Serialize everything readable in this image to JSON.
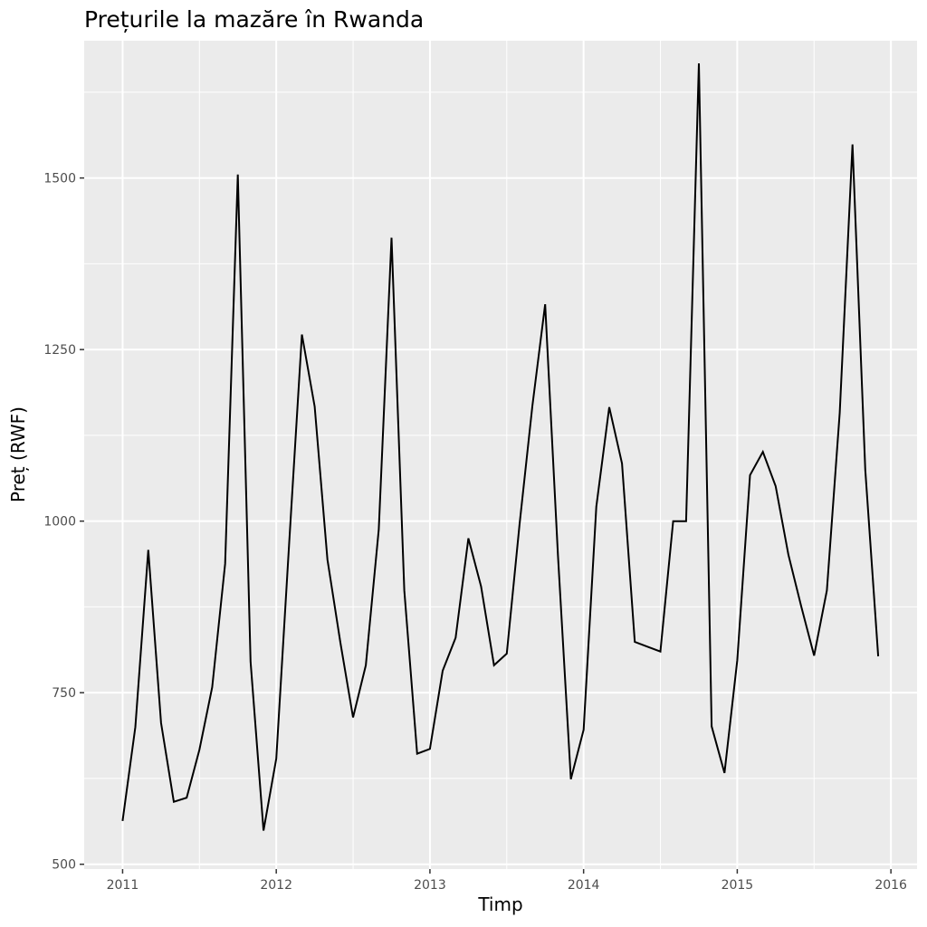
{
  "chart_data": {
    "type": "line",
    "title": "Prețurile la mazăre în Rwanda",
    "xlabel": "Timp",
    "ylabel": "Preț (RWF)",
    "xlim": [
      2010.75,
      2016.17
    ],
    "ylim": [
      493,
      1700
    ],
    "x_ticks": [
      2011,
      2012,
      2013,
      2014,
      2015,
      2016
    ],
    "y_ticks": [
      500,
      750,
      1000,
      1250,
      1500
    ],
    "grid": true,
    "panel_background": "#ebebeb",
    "grid_color": "#ffffff",
    "line_color": "#000000",
    "series": [
      {
        "x": [
          2011.0,
          2011.083,
          2011.167,
          2011.25,
          2011.333,
          2011.417,
          2011.5,
          2011.583,
          2011.667,
          2011.75,
          2011.833,
          2011.917,
          2012.0,
          2012.083,
          2012.167,
          2012.25,
          2012.333,
          2012.417,
          2012.5,
          2012.583,
          2012.667,
          2012.75,
          2012.833,
          2012.917,
          2013.0,
          2013.083,
          2013.167,
          2013.25,
          2013.333,
          2013.417,
          2013.5,
          2013.583,
          2013.667,
          2013.75,
          2013.833,
          2013.917,
          2014.0,
          2014.083,
          2014.167,
          2014.25,
          2014.333,
          2014.417,
          2014.5,
          2014.583,
          2014.667,
          2014.75,
          2014.833,
          2014.917,
          2015.0,
          2015.083,
          2015.167,
          2015.25,
          2015.333,
          2015.417,
          2015.5,
          2015.583,
          2015.667,
          2015.75,
          2015.833,
          2015.917
        ],
        "values": [
          563,
          700,
          958,
          706,
          591,
          597,
          667,
          758,
          938,
          1505,
          795,
          549,
          654,
          965,
          1272,
          1167,
          944,
          823,
          714,
          790,
          988,
          1413,
          899,
          661,
          668,
          782,
          830,
          975,
          905,
          790,
          807,
          995,
          1168,
          1316,
          951,
          624,
          696,
          1021,
          1166,
          1084,
          824,
          817,
          810,
          1000,
          1000,
          1667,
          701,
          633,
          797,
          1067,
          1101,
          1051,
          951,
          875,
          804,
          899,
          1158,
          1549,
          1075,
          803
        ]
      }
    ]
  }
}
